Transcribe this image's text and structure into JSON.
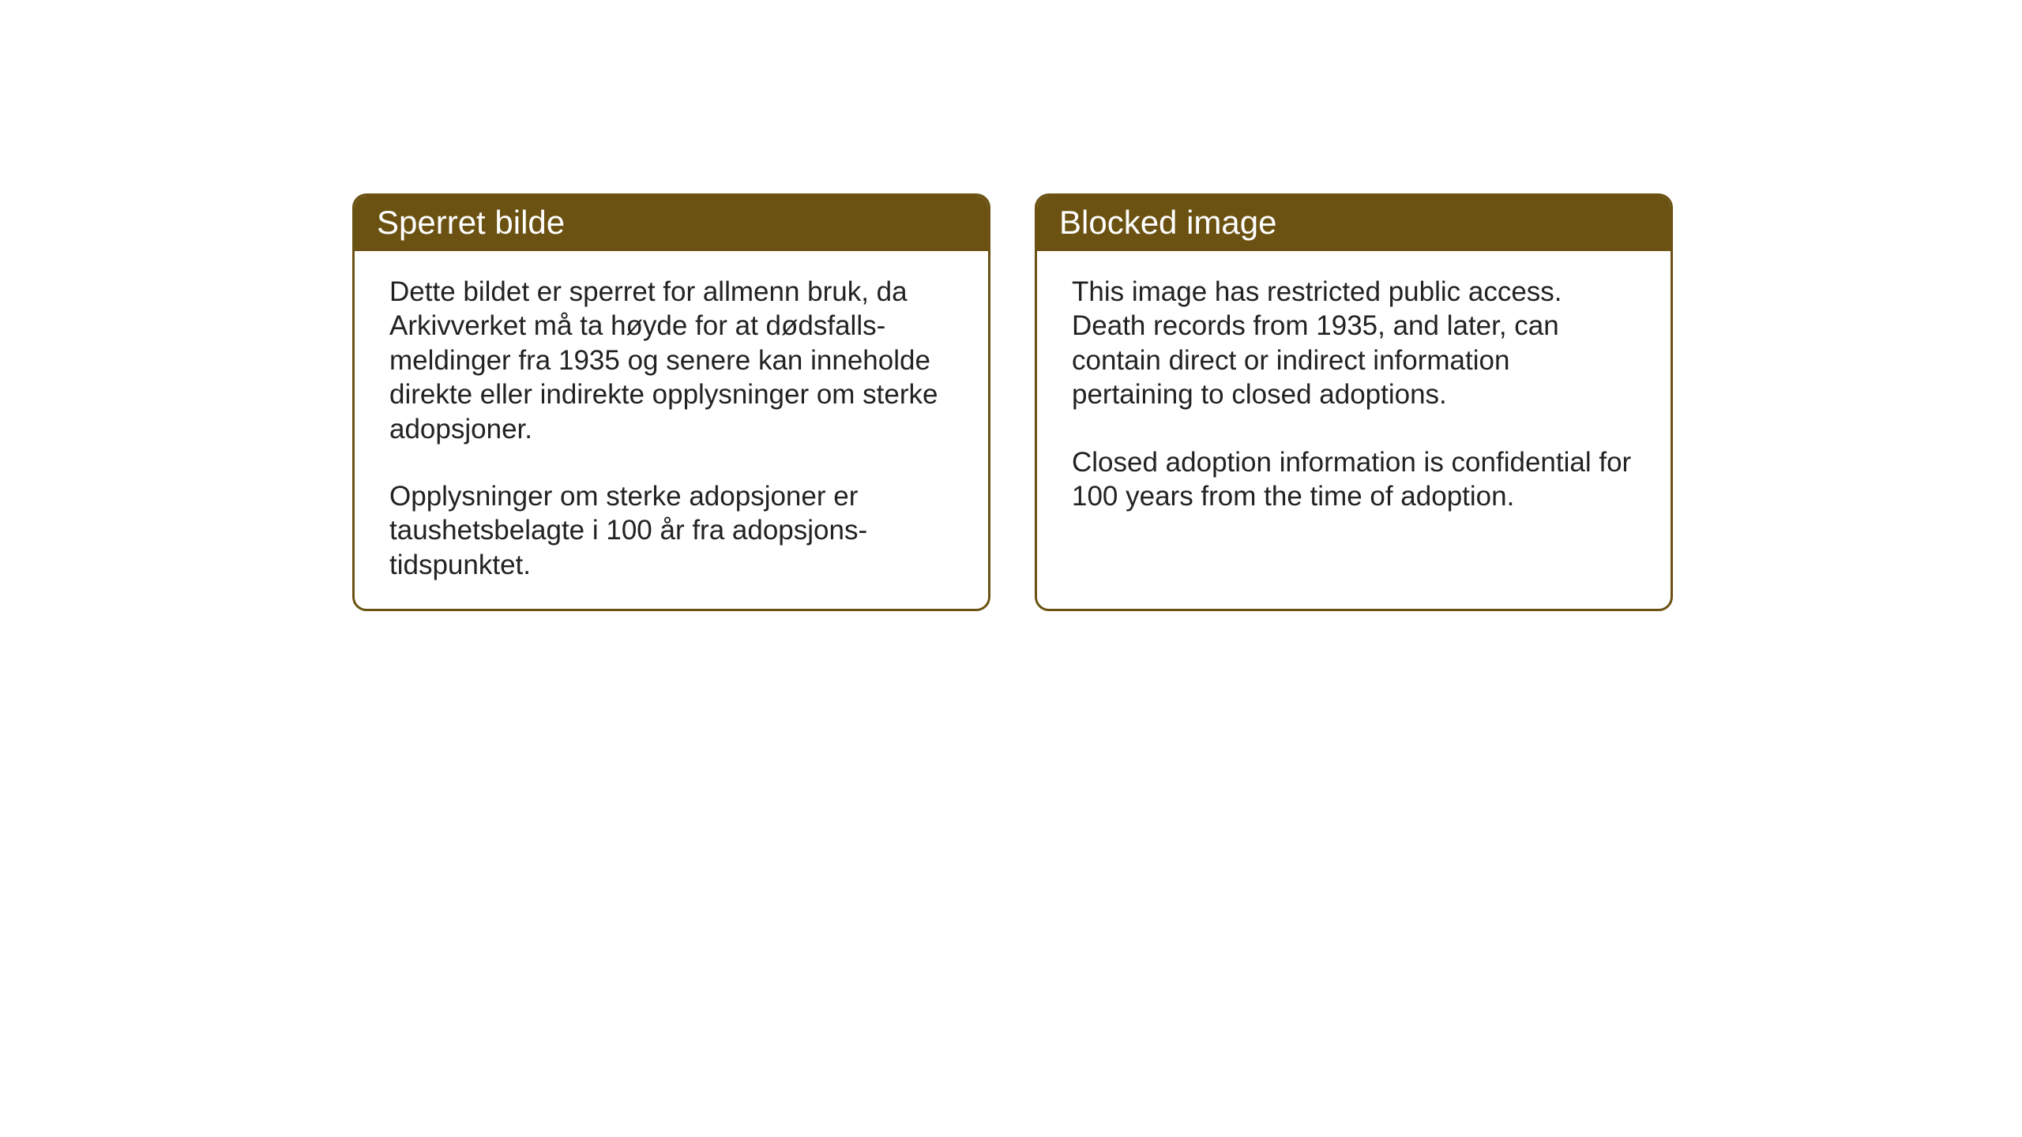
{
  "layout": {
    "background_color": "#ffffff",
    "card_border_color": "#6b5212",
    "card_header_bg": "#6b5212",
    "card_header_text_color": "#ffffff",
    "card_body_text_color": "#222222",
    "card_border_radius": 18,
    "card_border_width": 3,
    "title_fontsize": 42,
    "body_fontsize": 35
  },
  "cards": {
    "norwegian": {
      "title": "Sperret bilde",
      "paragraph1": "Dette bildet er sperret for allmenn bruk, da Arkivverket må ta høyde for at dødsfalls-meldinger fra 1935 og senere kan inneholde direkte eller indirekte opplysninger om sterke adopsjoner.",
      "paragraph2": "Opplysninger om sterke adopsjoner er taushetsbelagte i 100 år fra adopsjons-tidspunktet."
    },
    "english": {
      "title": "Blocked image",
      "paragraph1": "This image has restricted public access. Death records from 1935, and later, can contain direct or indirect information pertaining to closed adoptions.",
      "paragraph2": "Closed adoption information is confidential for 100 years from the time of adoption."
    }
  }
}
